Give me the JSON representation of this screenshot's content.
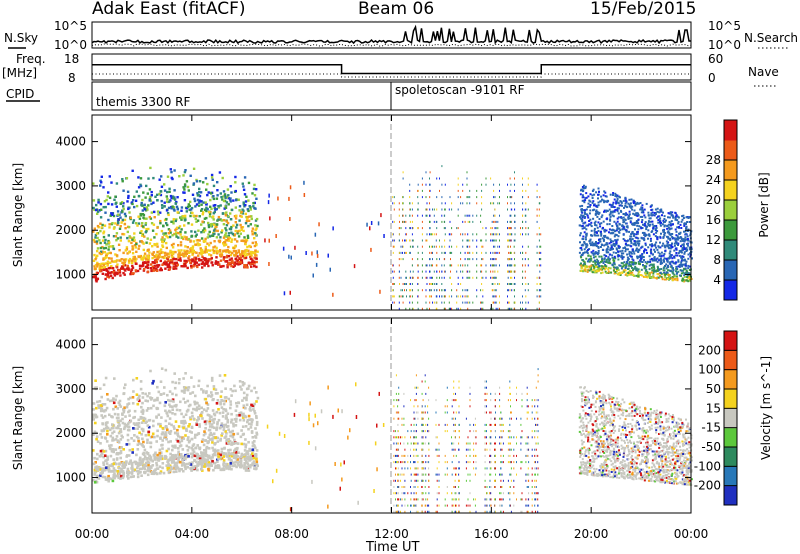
{
  "header": {
    "title": "Adak East (fitACF)",
    "beam": "Beam 06",
    "date": "15/Feb/2015"
  },
  "summary_panels": {
    "nsky_label": "N.Sky",
    "nsky_ticks": [
      "10^5",
      "10^0"
    ],
    "nsearch_label": "N.Search",
    "nsearch_ticks": [
      "10^5",
      "10^0"
    ],
    "freq_label": "Freq.",
    "freq_unit": "[MHz]",
    "freq_ticks": [
      "18",
      "8"
    ],
    "nave_label": "Nave",
    "nave_ticks": [
      "60",
      "0"
    ],
    "cpid_label": "CPID",
    "cpid_segments": [
      {
        "label": "themis 3300 RF",
        "start_hour": 0,
        "end_hour": 12
      },
      {
        "label": "spoletoscan -9101 RF",
        "start_hour": 12,
        "end_hour": 24
      }
    ],
    "freq_mhz": [
      {
        "start_hour": 0,
        "end_hour": 10,
        "value": 14.5
      },
      {
        "start_hour": 10,
        "end_hour": 18,
        "value": 10.5
      },
      {
        "start_hour": 18,
        "end_hour": 24,
        "value": 14.5
      }
    ]
  },
  "chart_data": [
    {
      "type": "heatmap",
      "name": "power",
      "ylabel": "Slant Range [km]",
      "ylim": [
        200,
        4600
      ],
      "y_ticks": [
        1000,
        2000,
        3000,
        4000
      ],
      "colorbar_label": "Power [dB]",
      "colorbar_ticks": [
        4,
        8,
        12,
        16,
        20,
        24,
        28
      ],
      "colorbar_range": [
        0,
        32
      ],
      "colorbar_colors": [
        "#1428e6",
        "#2866b4",
        "#2f8a7a",
        "#3c9a3c",
        "#9bcf3c",
        "#f4d21e",
        "#f49a1e",
        "#ec5a18",
        "#d41414"
      ],
      "regions": [
        {
          "t": [
            0.0,
            6.5
          ],
          "r": [
            800,
            1300
          ],
          "level": "high"
        },
        {
          "t": [
            0.0,
            6.5
          ],
          "r": [
            1300,
            3500
          ],
          "level": "mid"
        },
        {
          "t": [
            12.0,
            18.0
          ],
          "r": [
            200,
            3500
          ],
          "level": "sparse"
        },
        {
          "t": [
            19.5,
            24.0
          ],
          "r": [
            850,
            1200
          ],
          "level": "mid-high"
        },
        {
          "t": [
            19.5,
            24.0
          ],
          "r": [
            1200,
            2900
          ],
          "level": "low"
        }
      ]
    },
    {
      "type": "heatmap",
      "name": "velocity",
      "ylabel": "Slant Range [km]",
      "ylim": [
        200,
        4600
      ],
      "y_ticks": [
        1000,
        2000,
        3000,
        4000
      ],
      "colorbar_label": "Velocity [m s^-1]",
      "colorbar_ticks": [
        200,
        100,
        50,
        15,
        -15,
        -50,
        -100,
        -200
      ],
      "colorbar_colors": [
        "#2030c0",
        "#2878b8",
        "#2e8a5e",
        "#5cc83c",
        "#c8c8c0",
        "#f4d21e",
        "#f49a1e",
        "#ec5a18",
        "#d41414"
      ],
      "regions": [
        {
          "t": [
            0.0,
            6.5
          ],
          "r": [
            800,
            3200
          ],
          "level": "low-velocity"
        },
        {
          "t": [
            12.0,
            18.0
          ],
          "r": [
            200,
            3500
          ],
          "level": "sparse"
        },
        {
          "t": [
            19.5,
            24.0
          ],
          "r": [
            850,
            2900
          ],
          "level": "low-velocity"
        }
      ]
    }
  ],
  "x_axis": {
    "label": "Time UT",
    "tick_labels": [
      "00:00",
      "04:00",
      "08:00",
      "12:00",
      "16:00",
      "20:00",
      "00:00"
    ],
    "tick_hours": [
      0,
      4,
      8,
      12,
      16,
      20,
      24
    ]
  }
}
